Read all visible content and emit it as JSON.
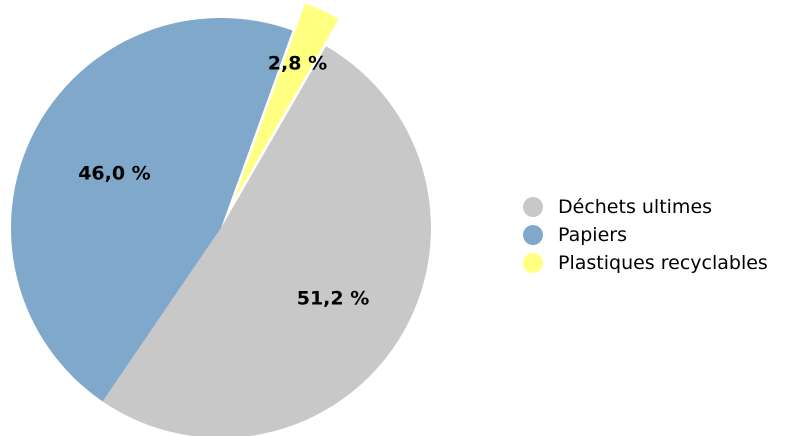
{
  "chart_data": {
    "type": "pie",
    "title": "",
    "categories": [
      "Déchets ultimes",
      "Papiers",
      "Plastiques recyclables"
    ],
    "values": [
      51.2,
      46.0,
      2.8
    ],
    "value_labels": [
      "51,2 %",
      "46,0 %",
      "2,8 %"
    ],
    "colors": [
      "#c8c8c8",
      "#80a8cb",
      "#ffff80"
    ],
    "exploded": [
      false,
      false,
      true
    ],
    "legend_placement": "right"
  },
  "legend": {
    "items": [
      {
        "label": "Déchets ultimes",
        "color": "#c8c8c8"
      },
      {
        "label": "Papiers",
        "color": "#80a8cb"
      },
      {
        "label": "Plastiques recyclables",
        "color": "#ffff80"
      }
    ]
  }
}
